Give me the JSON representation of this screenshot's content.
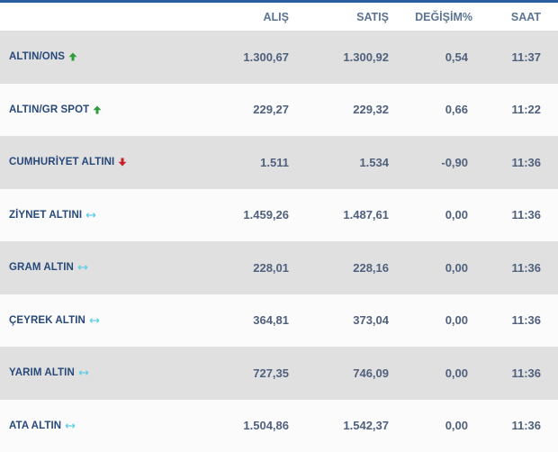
{
  "columns": {
    "name": "",
    "bid": "ALIŞ",
    "ask": "SATIŞ",
    "change": "DEĞİŞİM%",
    "time": "SAAT"
  },
  "rows": [
    {
      "name": "ALTIN/ONS",
      "trend": "up",
      "bid": "1.300,67",
      "ask": "1.300,92",
      "change": "0,54",
      "time": "11:37"
    },
    {
      "name": "ALTIN/GR SPOT",
      "trend": "up",
      "bid": "229,27",
      "ask": "229,32",
      "change": "0,66",
      "time": "11:22"
    },
    {
      "name": "CUMHURİYET ALTINI",
      "trend": "down",
      "bid": "1.511",
      "ask": "1.534",
      "change": "-0,90",
      "time": "11:36"
    },
    {
      "name": "ZİYNET ALTINI",
      "trend": "flat",
      "bid": "1.459,26",
      "ask": "1.487,61",
      "change": "0,00",
      "time": "11:36"
    },
    {
      "name": "GRAM ALTIN",
      "trend": "flat",
      "bid": "228,01",
      "ask": "228,16",
      "change": "0,00",
      "time": "11:36"
    },
    {
      "name": "ÇEYREK ALTIN",
      "trend": "flat",
      "bid": "364,81",
      "ask": "373,04",
      "change": "0,00",
      "time": "11:36"
    },
    {
      "name": "YARIM ALTIN",
      "trend": "flat",
      "bid": "727,35",
      "ask": "746,09",
      "change": "0,00",
      "time": "11:36"
    },
    {
      "name": "ATA ALTIN",
      "trend": "flat",
      "bid": "1.504,86",
      "ask": "1.542,37",
      "change": "0,00",
      "time": "11:36"
    }
  ],
  "colors": {
    "up": "#2e9e3a",
    "down": "#c8202a",
    "flat": "#5fd0e6",
    "header_text": "#5c7493",
    "name_text": "#27497a",
    "value_text": "#50617e",
    "shade_row": "#e0e0e0",
    "light_row": "#fbfbfb",
    "top_border": "#2c5d9e"
  },
  "icons": {
    "up": "arrow-up-icon",
    "down": "arrow-down-icon",
    "flat": "arrow-left-right-icon"
  }
}
